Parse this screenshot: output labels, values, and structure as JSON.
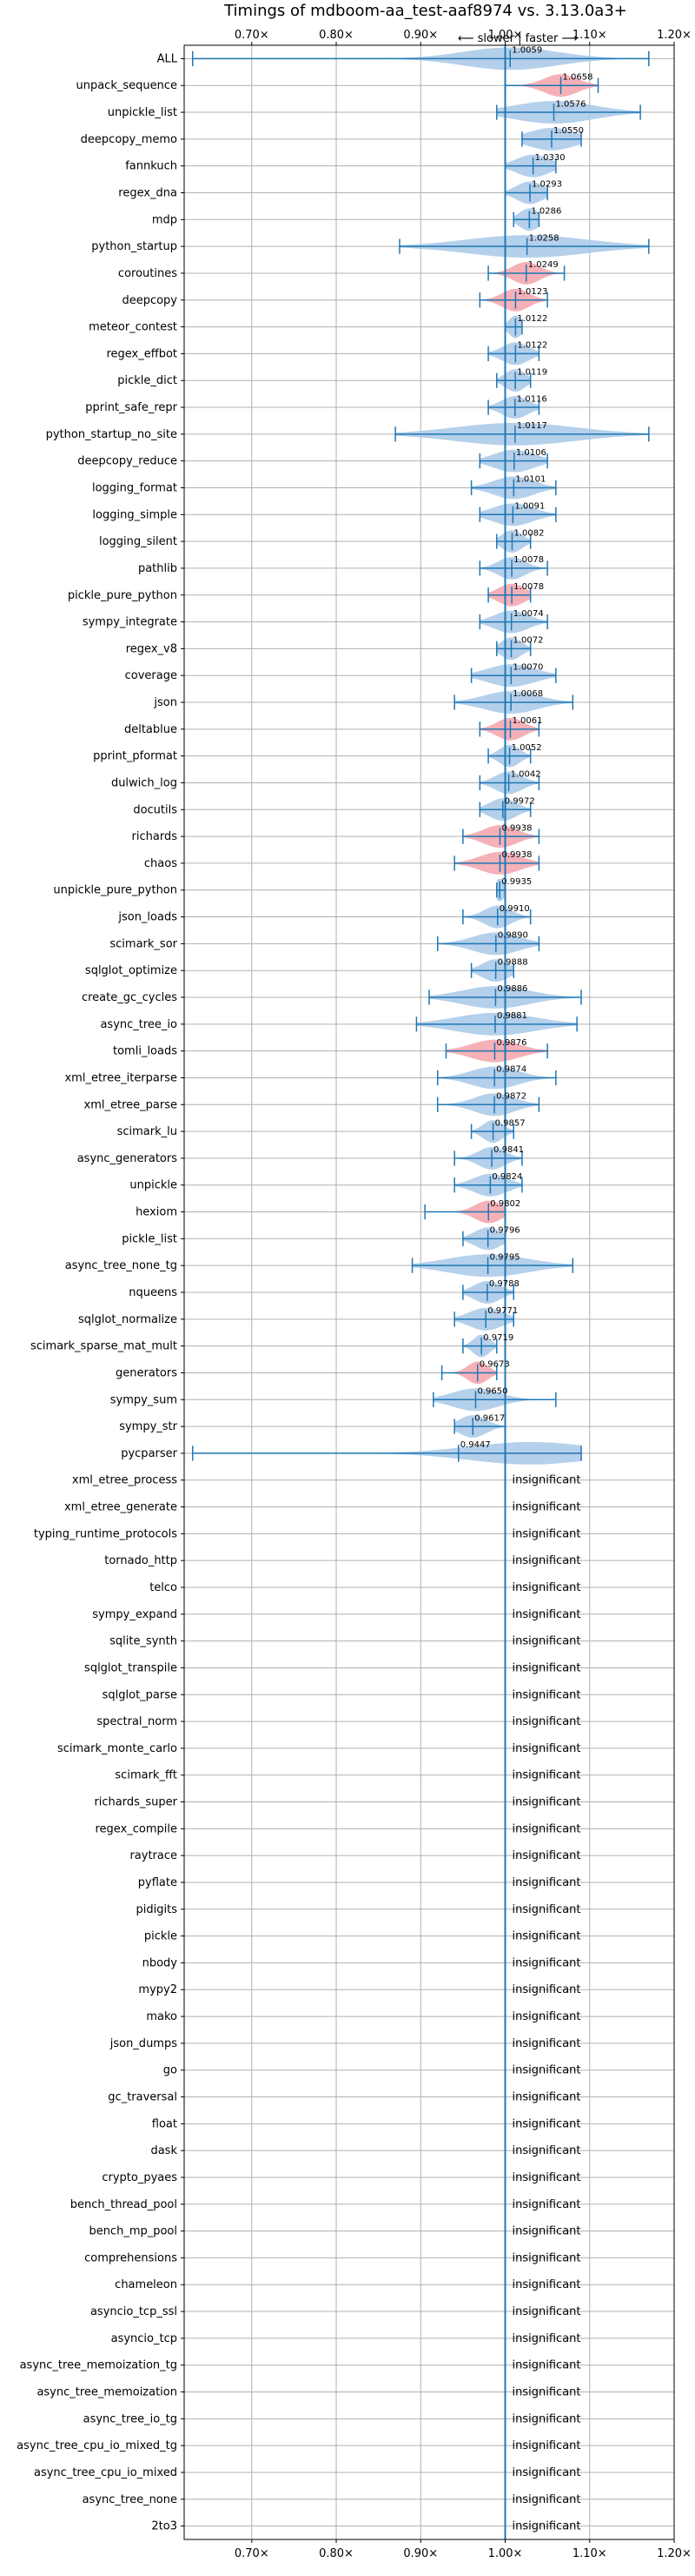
{
  "chart_data": {
    "type": "violin",
    "title": "Timings of mdboom-aa_test-aaf8974 vs. 3.13.0a3+",
    "subtitle": "⟵ slower | faster ⟶",
    "xlim": [
      0.62,
      1.2
    ],
    "xticks": [
      0.7,
      0.8,
      0.9,
      1.0,
      1.1,
      1.2
    ],
    "xtick_labels": [
      "0.70×",
      "0.80×",
      "0.90×",
      "1.00×",
      "1.10×",
      "1.20×"
    ],
    "reference_line": 1.0,
    "grid": true,
    "colors": {
      "faster": "#a8c8e8",
      "slower": "#f4a3ac",
      "line": "#1f77b4",
      "grid": "#b0b0b0"
    },
    "insignificant_label": "insignificant",
    "benchmarks": [
      {
        "name": "ALL",
        "value": 1.0059,
        "value_label": "1.0059",
        "min": 0.63,
        "max": 1.17,
        "spread": 0.07,
        "kind": "faster"
      },
      {
        "name": "unpack_sequence",
        "value": 1.0658,
        "value_label": "1.0658",
        "min": 1.0,
        "max": 1.11,
        "spread": 0.025,
        "kind": "slower"
      },
      {
        "name": "unpickle_list",
        "value": 1.0576,
        "value_label": "1.0576",
        "min": 0.99,
        "max": 1.16,
        "spread": 0.06,
        "kind": "faster"
      },
      {
        "name": "deepcopy_memo",
        "value": 1.055,
        "value_label": "1.0550",
        "min": 1.02,
        "max": 1.09,
        "spread": 0.035,
        "kind": "faster"
      },
      {
        "name": "fannkuch",
        "value": 1.033,
        "value_label": "1.0330",
        "min": 1.0,
        "max": 1.06,
        "spread": 0.025,
        "kind": "faster"
      },
      {
        "name": "regex_dna",
        "value": 1.0293,
        "value_label": "1.0293",
        "min": 1.0,
        "max": 1.05,
        "spread": 0.02,
        "kind": "faster"
      },
      {
        "name": "mdp",
        "value": 1.0286,
        "value_label": "1.0286",
        "min": 1.01,
        "max": 1.04,
        "spread": 0.015,
        "kind": "faster"
      },
      {
        "name": "python_startup",
        "value": 1.0258,
        "value_label": "1.0258",
        "min": 0.875,
        "max": 1.17,
        "spread": 0.09,
        "kind": "faster"
      },
      {
        "name": "coroutines",
        "value": 1.0249,
        "value_label": "1.0249",
        "min": 0.98,
        "max": 1.07,
        "spread": 0.02,
        "kind": "slower"
      },
      {
        "name": "deepcopy",
        "value": 1.0123,
        "value_label": "1.0123",
        "min": 0.97,
        "max": 1.05,
        "spread": 0.02,
        "kind": "slower"
      },
      {
        "name": "meteor_contest",
        "value": 1.0122,
        "value_label": "1.0122",
        "min": 1.0,
        "max": 1.02,
        "spread": 0.01,
        "kind": "faster"
      },
      {
        "name": "regex_effbot",
        "value": 1.0122,
        "value_label": "1.0122",
        "min": 0.98,
        "max": 1.04,
        "spread": 0.02,
        "kind": "faster"
      },
      {
        "name": "pickle_dict",
        "value": 1.0119,
        "value_label": "1.0119",
        "min": 0.99,
        "max": 1.03,
        "spread": 0.015,
        "kind": "faster"
      },
      {
        "name": "pprint_safe_repr",
        "value": 1.0116,
        "value_label": "1.0116",
        "min": 0.98,
        "max": 1.04,
        "spread": 0.02,
        "kind": "faster"
      },
      {
        "name": "python_startup_no_site",
        "value": 1.0117,
        "value_label": "1.0117",
        "min": 0.87,
        "max": 1.17,
        "spread": 0.09,
        "kind": "faster"
      },
      {
        "name": "deepcopy_reduce",
        "value": 1.0106,
        "value_label": "1.0106",
        "min": 0.97,
        "max": 1.05,
        "spread": 0.03,
        "kind": "faster"
      },
      {
        "name": "logging_format",
        "value": 1.0101,
        "value_label": "1.0101",
        "min": 0.96,
        "max": 1.06,
        "spread": 0.03,
        "kind": "faster"
      },
      {
        "name": "logging_simple",
        "value": 1.0091,
        "value_label": "1.0091",
        "min": 0.97,
        "max": 1.06,
        "spread": 0.03,
        "kind": "faster"
      },
      {
        "name": "logging_silent",
        "value": 1.0082,
        "value_label": "1.0082",
        "min": 0.99,
        "max": 1.03,
        "spread": 0.015,
        "kind": "faster"
      },
      {
        "name": "pathlib",
        "value": 1.0078,
        "value_label": "1.0078",
        "min": 0.97,
        "max": 1.05,
        "spread": 0.02,
        "kind": "faster"
      },
      {
        "name": "pickle_pure_python",
        "value": 1.0078,
        "value_label": "1.0078",
        "min": 0.98,
        "max": 1.03,
        "spread": 0.02,
        "kind": "slower"
      },
      {
        "name": "sympy_integrate",
        "value": 1.0074,
        "value_label": "1.0074",
        "min": 0.97,
        "max": 1.05,
        "spread": 0.025,
        "kind": "faster"
      },
      {
        "name": "regex_v8",
        "value": 1.0072,
        "value_label": "1.0072",
        "min": 0.99,
        "max": 1.03,
        "spread": 0.015,
        "kind": "faster"
      },
      {
        "name": "coverage",
        "value": 1.007,
        "value_label": "1.0070",
        "min": 0.96,
        "max": 1.06,
        "spread": 0.035,
        "kind": "faster"
      },
      {
        "name": "json",
        "value": 1.0068,
        "value_label": "1.0068",
        "min": 0.94,
        "max": 1.08,
        "spread": 0.04,
        "kind": "faster"
      },
      {
        "name": "deltablue",
        "value": 1.0061,
        "value_label": "1.0061",
        "min": 0.97,
        "max": 1.04,
        "spread": 0.02,
        "kind": "slower"
      },
      {
        "name": "pprint_pformat",
        "value": 1.0052,
        "value_label": "1.0052",
        "min": 0.98,
        "max": 1.03,
        "spread": 0.015,
        "kind": "faster"
      },
      {
        "name": "dulwich_log",
        "value": 1.0042,
        "value_label": "1.0042",
        "min": 0.97,
        "max": 1.04,
        "spread": 0.02,
        "kind": "faster"
      },
      {
        "name": "docutils",
        "value": 0.9972,
        "value_label": "0.9972",
        "min": 0.97,
        "max": 1.03,
        "spread": 0.02,
        "kind": "faster"
      },
      {
        "name": "richards",
        "value": 0.9938,
        "value_label": "0.9938",
        "min": 0.95,
        "max": 1.04,
        "spread": 0.025,
        "kind": "slower"
      },
      {
        "name": "chaos",
        "value": 0.9938,
        "value_label": "0.9938",
        "min": 0.94,
        "max": 1.04,
        "spread": 0.03,
        "kind": "slower"
      },
      {
        "name": "unpickle_pure_python",
        "value": 0.9935,
        "value_label": "0.9935",
        "min": 0.99,
        "max": 1.0,
        "spread": 0.008,
        "kind": "faster"
      },
      {
        "name": "json_loads",
        "value": 0.991,
        "value_label": "0.9910",
        "min": 0.95,
        "max": 1.03,
        "spread": 0.02,
        "kind": "faster"
      },
      {
        "name": "scimark_sor",
        "value": 0.989,
        "value_label": "0.9890",
        "min": 0.92,
        "max": 1.04,
        "spread": 0.035,
        "kind": "faster"
      },
      {
        "name": "sqlglot_optimize",
        "value": 0.9888,
        "value_label": "0.9888",
        "min": 0.96,
        "max": 1.01,
        "spread": 0.02,
        "kind": "faster"
      },
      {
        "name": "create_gc_cycles",
        "value": 0.9886,
        "value_label": "0.9886",
        "min": 0.91,
        "max": 1.09,
        "spread": 0.05,
        "kind": "faster"
      },
      {
        "name": "async_tree_io",
        "value": 0.9881,
        "value_label": "0.9881",
        "min": 0.895,
        "max": 1.085,
        "spread": 0.06,
        "kind": "faster"
      },
      {
        "name": "tomli_loads",
        "value": 0.9876,
        "value_label": "0.9876",
        "min": 0.93,
        "max": 1.05,
        "spread": 0.035,
        "kind": "slower"
      },
      {
        "name": "xml_etree_iterparse",
        "value": 0.9874,
        "value_label": "0.9874",
        "min": 0.92,
        "max": 1.06,
        "spread": 0.035,
        "kind": "faster"
      },
      {
        "name": "xml_etree_parse",
        "value": 0.9872,
        "value_label": "0.9872",
        "min": 0.92,
        "max": 1.04,
        "spread": 0.03,
        "kind": "faster"
      },
      {
        "name": "scimark_lu",
        "value": 0.9857,
        "value_label": "0.9857",
        "min": 0.96,
        "max": 1.01,
        "spread": 0.015,
        "kind": "faster"
      },
      {
        "name": "async_generators",
        "value": 0.9841,
        "value_label": "0.9841",
        "min": 0.94,
        "max": 1.02,
        "spread": 0.02,
        "kind": "faster"
      },
      {
        "name": "unpickle",
        "value": 0.9824,
        "value_label": "0.9824",
        "min": 0.94,
        "max": 1.02,
        "spread": 0.025,
        "kind": "faster"
      },
      {
        "name": "hexiom",
        "value": 0.9802,
        "value_label": "0.9802",
        "min": 0.905,
        "max": 1.0,
        "spread": 0.02,
        "kind": "slower"
      },
      {
        "name": "pickle_list",
        "value": 0.9796,
        "value_label": "0.9796",
        "min": 0.95,
        "max": 1.0,
        "spread": 0.02,
        "kind": "faster"
      },
      {
        "name": "async_tree_none_tg",
        "value": 0.9795,
        "value_label": "0.9795",
        "min": 0.89,
        "max": 1.08,
        "spread": 0.06,
        "kind": "faster"
      },
      {
        "name": "nqueens",
        "value": 0.9788,
        "value_label": "0.9788",
        "min": 0.95,
        "max": 1.01,
        "spread": 0.02,
        "kind": "faster"
      },
      {
        "name": "sqlglot_normalize",
        "value": 0.9771,
        "value_label": "0.9771",
        "min": 0.94,
        "max": 1.01,
        "spread": 0.025,
        "kind": "faster"
      },
      {
        "name": "scimark_sparse_mat_mult",
        "value": 0.9719,
        "value_label": "0.9719",
        "min": 0.95,
        "max": 0.99,
        "spread": 0.012,
        "kind": "faster"
      },
      {
        "name": "generators",
        "value": 0.9673,
        "value_label": "0.9673",
        "min": 0.925,
        "max": 0.99,
        "spread": 0.015,
        "kind": "slower"
      },
      {
        "name": "sympy_sum",
        "value": 0.965,
        "value_label": "0.9650",
        "min": 0.915,
        "max": 1.06,
        "spread": 0.035,
        "kind": "faster"
      },
      {
        "name": "sympy_str",
        "value": 0.9617,
        "value_label": "0.9617",
        "min": 0.94,
        "max": 1.0,
        "spread": 0.02,
        "kind": "faster"
      },
      {
        "name": "pycparser",
        "value": 0.9447,
        "value_label": "0.9447",
        "min": 0.63,
        "max": 1.09,
        "spread": 0.09,
        "kind": "faster",
        "peak": 1.03
      },
      {
        "name": "xml_etree_process",
        "insignificant": true
      },
      {
        "name": "xml_etree_generate",
        "insignificant": true
      },
      {
        "name": "typing_runtime_protocols",
        "insignificant": true
      },
      {
        "name": "tornado_http",
        "insignificant": true
      },
      {
        "name": "telco",
        "insignificant": true
      },
      {
        "name": "sympy_expand",
        "insignificant": true
      },
      {
        "name": "sqlite_synth",
        "insignificant": true
      },
      {
        "name": "sqlglot_transpile",
        "insignificant": true
      },
      {
        "name": "sqlglot_parse",
        "insignificant": true
      },
      {
        "name": "spectral_norm",
        "insignificant": true
      },
      {
        "name": "scimark_monte_carlo",
        "insignificant": true
      },
      {
        "name": "scimark_fft",
        "insignificant": true
      },
      {
        "name": "richards_super",
        "insignificant": true
      },
      {
        "name": "regex_compile",
        "insignificant": true
      },
      {
        "name": "raytrace",
        "insignificant": true
      },
      {
        "name": "pyflate",
        "insignificant": true
      },
      {
        "name": "pidigits",
        "insignificant": true
      },
      {
        "name": "pickle",
        "insignificant": true
      },
      {
        "name": "nbody",
        "insignificant": true
      },
      {
        "name": "mypy2",
        "insignificant": true
      },
      {
        "name": "mako",
        "insignificant": true
      },
      {
        "name": "json_dumps",
        "insignificant": true
      },
      {
        "name": "go",
        "insignificant": true
      },
      {
        "name": "gc_traversal",
        "insignificant": true
      },
      {
        "name": "float",
        "insignificant": true
      },
      {
        "name": "dask",
        "insignificant": true
      },
      {
        "name": "crypto_pyaes",
        "insignificant": true
      },
      {
        "name": "bench_thread_pool",
        "insignificant": true
      },
      {
        "name": "bench_mp_pool",
        "insignificant": true
      },
      {
        "name": "comprehensions",
        "insignificant": true
      },
      {
        "name": "chameleon",
        "insignificant": true
      },
      {
        "name": "asyncio_tcp_ssl",
        "insignificant": true
      },
      {
        "name": "asyncio_tcp",
        "insignificant": true
      },
      {
        "name": "async_tree_memoization_tg",
        "insignificant": true
      },
      {
        "name": "async_tree_memoization",
        "insignificant": true
      },
      {
        "name": "async_tree_io_tg",
        "insignificant": true
      },
      {
        "name": "async_tree_cpu_io_mixed_tg",
        "insignificant": true
      },
      {
        "name": "async_tree_cpu_io_mixed",
        "insignificant": true
      },
      {
        "name": "async_tree_none",
        "insignificant": true
      },
      {
        "name": "2to3",
        "insignificant": true
      }
    ]
  }
}
